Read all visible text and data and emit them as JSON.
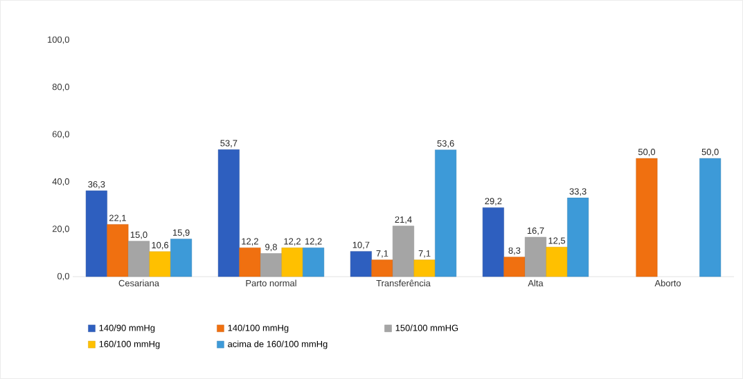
{
  "chart_data": {
    "type": "bar",
    "categories": [
      "Cesariana",
      "Parto normal",
      "Transferência",
      "Alta",
      "Aborto"
    ],
    "series": [
      {
        "name": "140/90 mmHg",
        "color": "#2e5fbf",
        "values": [
          36.3,
          53.7,
          10.7,
          29.2,
          null
        ],
        "value_labels": [
          "36,3",
          "53,7",
          "10,7",
          "29,2",
          null
        ]
      },
      {
        "name": "140/100 mmHg",
        "color": "#f07010",
        "values": [
          22.1,
          12.2,
          7.1,
          8.3,
          50.0
        ],
        "value_labels": [
          "22,1",
          "12,2",
          "7,1",
          "8,3",
          "50,0"
        ]
      },
      {
        "name": "150/100 mmHG",
        "color": "#a5a5a5",
        "values": [
          15.0,
          9.8,
          21.4,
          16.7,
          null
        ],
        "value_labels": [
          "15,0",
          "9,8",
          "21,4",
          "16,7",
          null
        ]
      },
      {
        "name": "160/100 mmHg",
        "color": "#ffc000",
        "values": [
          10.6,
          12.2,
          7.1,
          12.5,
          null
        ],
        "value_labels": [
          "10,6",
          "12,2",
          "7,1",
          "12,5",
          null
        ]
      },
      {
        "name": "acima de 160/100 mmHg",
        "color": "#3d9ad8",
        "values": [
          15.9,
          12.2,
          53.6,
          33.3,
          50.0
        ],
        "value_labels": [
          "15,9",
          "12,2",
          "53,6",
          "33,3",
          "50,0"
        ]
      }
    ],
    "ylim": [
      0,
      100
    ],
    "yticks": [
      {
        "value": 0,
        "label": "0,0"
      },
      {
        "value": 20,
        "label": "20,0"
      },
      {
        "value": 40,
        "label": "40,0"
      },
      {
        "value": 60,
        "label": "60,0"
      },
      {
        "value": 80,
        "label": "80,0"
      },
      {
        "value": 100,
        "label": "100,0"
      }
    ],
    "legend": "bottom"
  }
}
